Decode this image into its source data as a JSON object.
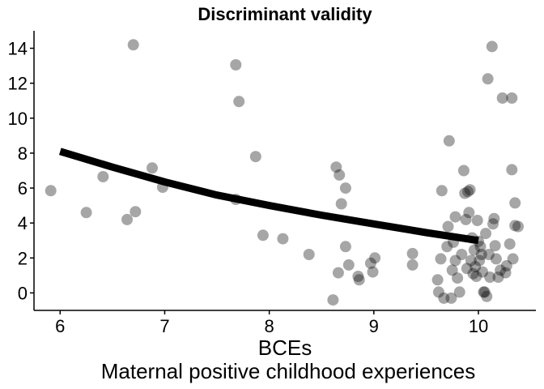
{
  "chart_data": {
    "type": "scatter",
    "title": "Discriminant validity",
    "xlabel": "BCEs",
    "xlabel2": "Maternal positive childhood experiences",
    "ylabel": "",
    "xlim": [
      5.75,
      10.55
    ],
    "ylim": [
      -1.0,
      15.0
    ],
    "x_ticks": [
      6,
      7,
      8,
      9,
      10
    ],
    "y_ticks": [
      0,
      2,
      4,
      6,
      8,
      10,
      12,
      14
    ],
    "grid": false,
    "point_color": "#000000",
    "point_opacity": 0.35,
    "line_color": "#000000",
    "points": [
      {
        "x": 5.91,
        "y": 5.85
      },
      {
        "x": 6.25,
        "y": 4.6
      },
      {
        "x": 6.41,
        "y": 6.65
      },
      {
        "x": 6.64,
        "y": 4.2
      },
      {
        "x": 6.7,
        "y": 14.2
      },
      {
        "x": 6.72,
        "y": 4.65
      },
      {
        "x": 6.88,
        "y": 7.15
      },
      {
        "x": 6.98,
        "y": 6.05
      },
      {
        "x": 7.68,
        "y": 13.05
      },
      {
        "x": 7.71,
        "y": 10.95
      },
      {
        "x": 7.68,
        "y": 5.35
      },
      {
        "x": 7.87,
        "y": 7.8
      },
      {
        "x": 7.94,
        "y": 3.3
      },
      {
        "x": 8.13,
        "y": 3.1
      },
      {
        "x": 8.38,
        "y": 2.2
      },
      {
        "x": 8.61,
        "y": -0.4
      },
      {
        "x": 8.64,
        "y": 7.2
      },
      {
        "x": 8.67,
        "y": 6.75
      },
      {
        "x": 8.66,
        "y": 1.15
      },
      {
        "x": 8.69,
        "y": 5.1
      },
      {
        "x": 8.73,
        "y": 6.0
      },
      {
        "x": 8.73,
        "y": 2.65
      },
      {
        "x": 8.76,
        "y": 1.6
      },
      {
        "x": 8.85,
        "y": 0.95
      },
      {
        "x": 8.86,
        "y": 0.75
      },
      {
        "x": 8.97,
        "y": 1.7
      },
      {
        "x": 8.99,
        "y": 1.2
      },
      {
        "x": 9.01,
        "y": 2.0
      },
      {
        "x": 9.37,
        "y": 2.25
      },
      {
        "x": 9.37,
        "y": 1.6
      },
      {
        "x": 9.61,
        "y": 0.75
      },
      {
        "x": 9.62,
        "y": 0.05
      },
      {
        "x": 9.64,
        "y": 1.95
      },
      {
        "x": 9.65,
        "y": 5.85
      },
      {
        "x": 9.67,
        "y": -0.3
      },
      {
        "x": 9.7,
        "y": 2.65
      },
      {
        "x": 9.71,
        "y": 3.8
      },
      {
        "x": 9.72,
        "y": 8.7
      },
      {
        "x": 9.74,
        "y": -0.3
      },
      {
        "x": 9.75,
        "y": 1.3
      },
      {
        "x": 9.76,
        "y": 2.9
      },
      {
        "x": 9.78,
        "y": 4.35
      },
      {
        "x": 9.78,
        "y": 1.85
      },
      {
        "x": 9.8,
        "y": 0.85
      },
      {
        "x": 9.82,
        "y": 0.05
      },
      {
        "x": 9.84,
        "y": 2.2
      },
      {
        "x": 9.86,
        "y": 7.0
      },
      {
        "x": 9.87,
        "y": 5.7
      },
      {
        "x": 9.88,
        "y": 4.2
      },
      {
        "x": 9.89,
        "y": 1.4
      },
      {
        "x": 9.9,
        "y": 5.8
      },
      {
        "x": 9.91,
        "y": 4.6
      },
      {
        "x": 9.92,
        "y": 5.9
      },
      {
        "x": 9.93,
        "y": 1.85
      },
      {
        "x": 9.94,
        "y": 3.15
      },
      {
        "x": 9.95,
        "y": 1.1
      },
      {
        "x": 9.96,
        "y": 2.45
      },
      {
        "x": 9.97,
        "y": 1.5
      },
      {
        "x": 9.98,
        "y": 0.95
      },
      {
        "x": 9.99,
        "y": 4.15
      },
      {
        "x": 10.0,
        "y": 2.95
      },
      {
        "x": 10.01,
        "y": 1.85
      },
      {
        "x": 10.02,
        "y": 2.65
      },
      {
        "x": 10.03,
        "y": 2.2
      },
      {
        "x": 10.04,
        "y": 1.2
      },
      {
        "x": 10.05,
        "y": 0.05
      },
      {
        "x": 10.06,
        "y": 0.05
      },
      {
        "x": 10.07,
        "y": 3.4
      },
      {
        "x": 10.08,
        "y": -0.2
      },
      {
        "x": 10.09,
        "y": 12.25
      },
      {
        "x": 10.1,
        "y": 2.2
      },
      {
        "x": 10.11,
        "y": 0.9
      },
      {
        "x": 10.13,
        "y": 14.1
      },
      {
        "x": 10.14,
        "y": 3.95
      },
      {
        "x": 10.15,
        "y": 4.25
      },
      {
        "x": 10.16,
        "y": 2.7
      },
      {
        "x": 10.17,
        "y": 1.95
      },
      {
        "x": 10.19,
        "y": 0.9
      },
      {
        "x": 10.21,
        "y": 1.3
      },
      {
        "x": 10.23,
        "y": 11.15
      },
      {
        "x": 10.26,
        "y": 1.15
      },
      {
        "x": 10.27,
        "y": 1.55
      },
      {
        "x": 10.3,
        "y": 2.8
      },
      {
        "x": 10.32,
        "y": 7.05
      },
      {
        "x": 10.32,
        "y": 11.15
      },
      {
        "x": 10.33,
        "y": 1.95
      },
      {
        "x": 10.35,
        "y": 5.15
      },
      {
        "x": 10.35,
        "y": 3.85
      },
      {
        "x": 10.38,
        "y": 3.8
      }
    ],
    "fit_line": {
      "x": [
        6.0,
        6.5,
        7.0,
        7.5,
        8.0,
        8.5,
        9.0,
        9.5,
        10.0
      ],
      "y": [
        8.1,
        7.2,
        6.35,
        5.6,
        5.0,
        4.45,
        3.95,
        3.45,
        3.0
      ]
    }
  }
}
